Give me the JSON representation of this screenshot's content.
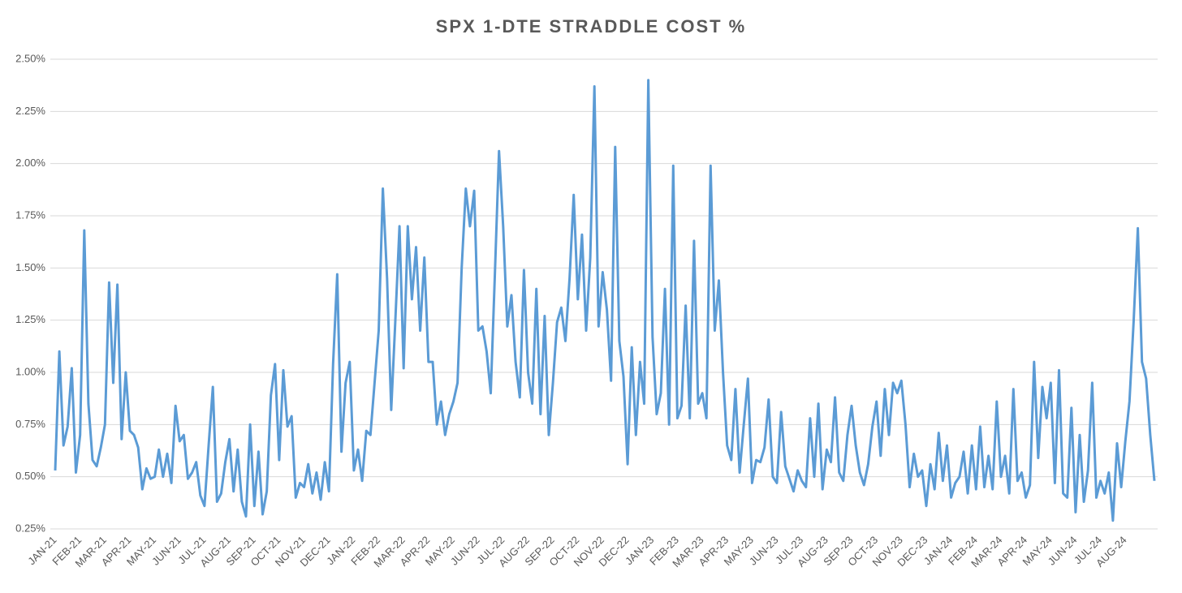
{
  "chart_data": {
    "type": "line",
    "title": "SPX 1-DTE STRADDLE COST %",
    "categories": [
      "JAN-21",
      null,
      null,
      null,
      null,
      null,
      "FEB-21",
      null,
      null,
      null,
      null,
      null,
      "MAR-21",
      null,
      null,
      null,
      null,
      null,
      "APR-21",
      null,
      null,
      null,
      null,
      null,
      "MAY-21",
      null,
      null,
      null,
      null,
      null,
      "JUN-21",
      null,
      null,
      null,
      null,
      null,
      "JUL-21",
      null,
      null,
      null,
      null,
      null,
      "AUG-21",
      null,
      null,
      null,
      null,
      null,
      "SEP-21",
      null,
      null,
      null,
      null,
      null,
      "OCT-21",
      null,
      null,
      null,
      null,
      null,
      "NOV-21",
      null,
      null,
      null,
      null,
      null,
      "DEC-21",
      null,
      null,
      null,
      null,
      null,
      "JAN-22",
      null,
      null,
      null,
      null,
      null,
      "FEB-22",
      null,
      null,
      null,
      null,
      null,
      "MAR-22",
      null,
      null,
      null,
      null,
      null,
      "APR-22",
      null,
      null,
      null,
      null,
      null,
      "MAY-22",
      null,
      null,
      null,
      null,
      null,
      "JUN-22",
      null,
      null,
      null,
      null,
      null,
      "JUL-22",
      null,
      null,
      null,
      null,
      null,
      "AUG-22",
      null,
      null,
      null,
      null,
      null,
      "SEP-22",
      null,
      null,
      null,
      null,
      null,
      "OCT-22",
      null,
      null,
      null,
      null,
      null,
      "NOV-22",
      null,
      null,
      null,
      null,
      null,
      "DEC-22",
      null,
      null,
      null,
      null,
      null,
      "JAN-23",
      null,
      null,
      null,
      null,
      null,
      "FEB-23",
      null,
      null,
      null,
      null,
      null,
      "MAR-23",
      null,
      null,
      null,
      null,
      null,
      "APR-23",
      null,
      null,
      null,
      null,
      null,
      "MAY-23",
      null,
      null,
      null,
      null,
      null,
      "JUN-23",
      null,
      null,
      null,
      null,
      null,
      "JUL-23",
      null,
      null,
      null,
      null,
      null,
      "AUG-23",
      null,
      null,
      null,
      null,
      null,
      "SEP-23",
      null,
      null,
      null,
      null,
      null,
      "OCT-23",
      null,
      null,
      null,
      null,
      null,
      "NOV-23",
      null,
      null,
      null,
      null,
      null,
      "DEC-23",
      null,
      null,
      null,
      null,
      null,
      "JAN-24",
      null,
      null,
      null,
      null,
      null,
      "FEB-24",
      null,
      null,
      null,
      null,
      null,
      "MAR-24",
      null,
      null,
      null,
      null,
      null,
      "APR-24",
      null,
      null,
      null,
      null,
      null,
      "MAY-24",
      null,
      null,
      null,
      null,
      null,
      "JUN-24",
      null,
      null,
      null,
      null,
      null,
      "JUL-24",
      null,
      null,
      null,
      null,
      null,
      "AUG-24",
      null,
      null,
      null,
      null,
      null,
      null,
      null
    ],
    "series": [
      {
        "name": "SPX 1-DTE Straddle Cost",
        "color": "#5b9bd5",
        "values": [
          0.53,
          1.1,
          0.65,
          0.74,
          1.02,
          0.52,
          0.7,
          1.68,
          0.85,
          0.58,
          0.55,
          0.64,
          0.75,
          1.43,
          0.95,
          1.42,
          0.68,
          1.0,
          0.72,
          0.7,
          0.64,
          0.44,
          0.54,
          0.49,
          0.5,
          0.63,
          0.5,
          0.61,
          0.47,
          0.84,
          0.67,
          0.7,
          0.49,
          0.52,
          0.57,
          0.41,
          0.36,
          0.65,
          0.93,
          0.38,
          0.42,
          0.57,
          0.68,
          0.43,
          0.63,
          0.38,
          0.31,
          0.75,
          0.36,
          0.62,
          0.32,
          0.43,
          0.89,
          1.04,
          0.58,
          1.01,
          0.74,
          0.79,
          0.4,
          0.47,
          0.45,
          0.56,
          0.42,
          0.52,
          0.39,
          0.57,
          0.43,
          1.04,
          1.47,
          0.62,
          0.95,
          1.05,
          0.53,
          0.63,
          0.48,
          0.72,
          0.7,
          0.95,
          1.2,
          1.88,
          1.45,
          0.82,
          1.25,
          1.7,
          1.02,
          1.7,
          1.35,
          1.6,
          1.2,
          1.55,
          1.05,
          1.05,
          0.75,
          0.86,
          0.7,
          0.8,
          0.86,
          0.95,
          1.5,
          1.88,
          1.7,
          1.87,
          1.2,
          1.22,
          1.1,
          0.9,
          1.47,
          2.06,
          1.7,
          1.22,
          1.37,
          1.05,
          0.88,
          1.49,
          1.0,
          0.85,
          1.4,
          0.8,
          1.27,
          0.7,
          0.95,
          1.24,
          1.31,
          1.15,
          1.45,
          1.85,
          1.35,
          1.66,
          1.2,
          1.55,
          2.37,
          1.22,
          1.48,
          1.3,
          0.96,
          2.08,
          1.15,
          0.98,
          0.56,
          1.12,
          0.7,
          1.05,
          0.85,
          2.4,
          1.17,
          0.8,
          0.9,
          1.4,
          0.75,
          1.99,
          0.78,
          0.84,
          1.32,
          0.78,
          1.63,
          0.85,
          0.9,
          0.78,
          1.99,
          1.2,
          1.44,
          1.0,
          0.65,
          0.58,
          0.92,
          0.52,
          0.75,
          0.97,
          0.47,
          0.58,
          0.57,
          0.64,
          0.87,
          0.5,
          0.47,
          0.81,
          0.55,
          0.49,
          0.43,
          0.53,
          0.48,
          0.45,
          0.78,
          0.5,
          0.85,
          0.44,
          0.63,
          0.57,
          0.88,
          0.52,
          0.48,
          0.7,
          0.84,
          0.65,
          0.52,
          0.46,
          0.56,
          0.74,
          0.86,
          0.6,
          0.92,
          0.7,
          0.95,
          0.9,
          0.96,
          0.75,
          0.45,
          0.61,
          0.5,
          0.53,
          0.36,
          0.56,
          0.44,
          0.71,
          0.48,
          0.65,
          0.4,
          0.47,
          0.5,
          0.62,
          0.42,
          0.65,
          0.44,
          0.74,
          0.45,
          0.6,
          0.44,
          0.86,
          0.5,
          0.6,
          0.42,
          0.92,
          0.48,
          0.52,
          0.4,
          0.46,
          1.05,
          0.59,
          0.93,
          0.78,
          0.95,
          0.47,
          1.01,
          0.42,
          0.4,
          0.83,
          0.33,
          0.7,
          0.38,
          0.53,
          0.95,
          0.4,
          0.48,
          0.42,
          0.52,
          0.29,
          0.66,
          0.45,
          0.67,
          0.86,
          1.25,
          1.69,
          1.05,
          0.97,
          0.7,
          0.48
        ]
      }
    ],
    "ylim": [
      0.25,
      2.5
    ],
    "yticks": [
      {
        "value": 0.25,
        "label": "0.25%"
      },
      {
        "value": 0.5,
        "label": "0.50%"
      },
      {
        "value": 0.75,
        "label": "0.75%"
      },
      {
        "value": 1.0,
        "label": "1.00%"
      },
      {
        "value": 1.25,
        "label": "1.25%"
      },
      {
        "value": 1.5,
        "label": "1.50%"
      },
      {
        "value": 1.75,
        "label": "1.75%"
      },
      {
        "value": 2.0,
        "label": "2.00%"
      },
      {
        "value": 2.25,
        "label": "2.25%"
      },
      {
        "value": 2.5,
        "label": "2.50%"
      }
    ],
    "grid": true
  }
}
